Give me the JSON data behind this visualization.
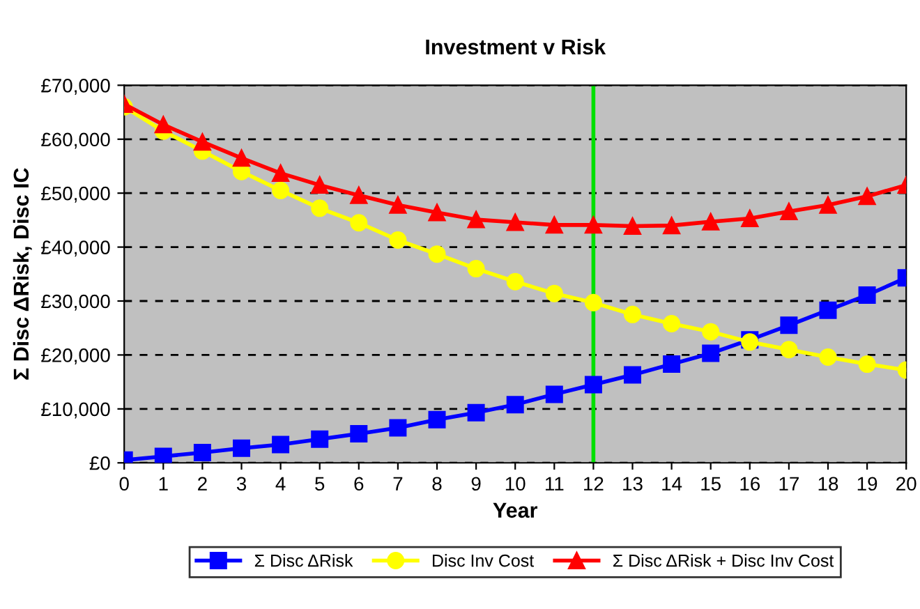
{
  "chart_data": {
    "type": "line",
    "title": "Investment v Risk",
    "xlabel": "Year",
    "ylabel": "Σ Disc ΔRisk, Disc IC",
    "x": [
      0,
      1,
      2,
      3,
      4,
      5,
      6,
      7,
      8,
      9,
      10,
      11,
      12,
      13,
      14,
      15,
      16,
      17,
      18,
      19,
      20
    ],
    "series": [
      {
        "name": "Σ Disc ΔRisk",
        "color": "#0000ff",
        "marker": "square",
        "values": [
          500,
          1200,
          1900,
          2700,
          3400,
          4400,
          5400,
          6500,
          8000,
          9300,
          10800,
          12700,
          14500,
          16300,
          18300,
          20300,
          22800,
          25500,
          28300,
          31100,
          34300
        ]
      },
      {
        "name": "Disc Inv Cost",
        "color": "#ffff00",
        "marker": "circle",
        "values": [
          66000,
          61500,
          57800,
          54000,
          50500,
          47200,
          44500,
          41300,
          38700,
          36000,
          33600,
          31400,
          29700,
          27500,
          25800,
          24300,
          22400,
          21000,
          19600,
          18300,
          17200
        ]
      },
      {
        "name": "Σ Disc ΔRisk + Disc Inv Cost",
        "color": "#ff0000",
        "marker": "triangle",
        "values": [
          66500,
          62700,
          59500,
          56500,
          53700,
          51500,
          49600,
          47800,
          46400,
          45100,
          44600,
          44100,
          44100,
          43900,
          44000,
          44700,
          45300,
          46600,
          47800,
          49400,
          51500
        ]
      }
    ],
    "xlim": [
      0,
      20
    ],
    "xticks": [
      0,
      1,
      2,
      3,
      4,
      5,
      6,
      7,
      8,
      9,
      10,
      11,
      12,
      13,
      14,
      15,
      16,
      17,
      18,
      19,
      20
    ],
    "ylim": [
      0,
      70000
    ],
    "yticks": [
      {
        "value": 0,
        "label": "£0"
      },
      {
        "value": 10000,
        "label": "£10,000"
      },
      {
        "value": 20000,
        "label": "£20,000"
      },
      {
        "value": 30000,
        "label": "£30,000"
      },
      {
        "value": 40000,
        "label": "£40,000"
      },
      {
        "value": 50000,
        "label": "£50,000"
      },
      {
        "value": 60000,
        "label": "£60,000"
      },
      {
        "value": 70000,
        "label": "£70,000"
      }
    ],
    "ref_lines": [
      {
        "axis": "x",
        "value": 12,
        "label": null,
        "color": "#00e000",
        "line_style": "solid"
      }
    ],
    "grid": "y",
    "legend": "bottom",
    "line_style": "solid"
  }
}
